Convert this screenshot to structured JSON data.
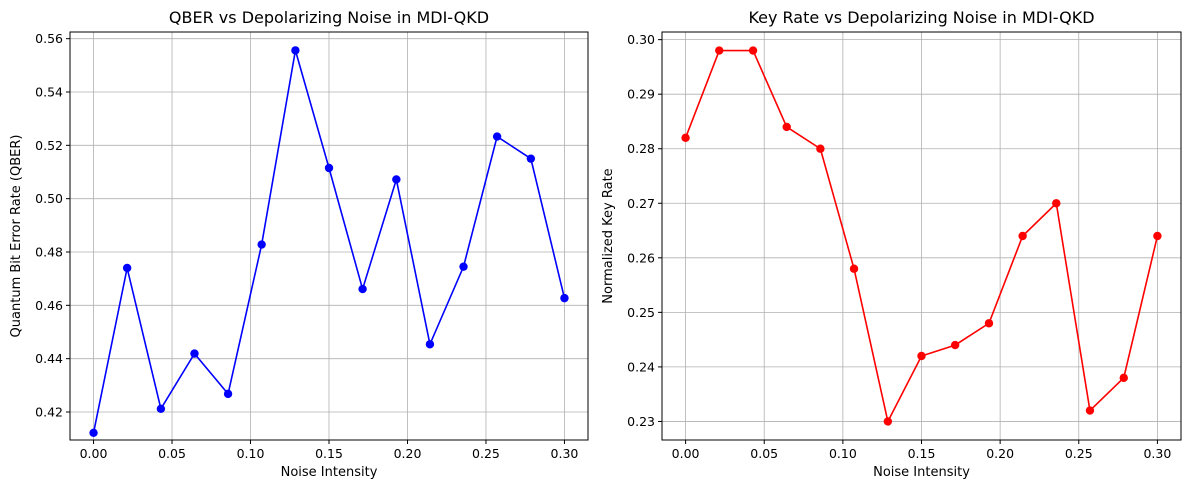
{
  "chart_data": [
    {
      "type": "line",
      "title": "QBER vs Depolarizing Noise in MDI-QKD",
      "xlabel": "Noise Intensity",
      "ylabel": "Quantum Bit Error Rate (QBER)",
      "xlim": [
        -0.015,
        0.315
      ],
      "ylim": [
        0.4095,
        0.5625
      ],
      "xticks": [
        "0.00",
        "0.05",
        "0.10",
        "0.15",
        "0.20",
        "0.25",
        "0.30"
      ],
      "xtick_values": [
        0,
        0.05,
        0.1,
        0.15,
        0.2,
        0.25,
        0.3
      ],
      "yticks": [
        "0.42",
        "0.44",
        "0.46",
        "0.48",
        "0.50",
        "0.52",
        "0.54",
        "0.56"
      ],
      "ytick_values": [
        0.42,
        0.44,
        0.46,
        0.48,
        0.5,
        0.52,
        0.54,
        0.56
      ],
      "grid": true,
      "color": "#0000ff",
      "x": [
        0.0,
        0.0214,
        0.0429,
        0.0643,
        0.0857,
        0.1071,
        0.1286,
        0.15,
        0.1714,
        0.1929,
        0.2143,
        0.2357,
        0.2571,
        0.2786,
        0.3
      ],
      "y": [
        0.4122,
        0.474,
        0.4212,
        0.4419,
        0.4268,
        0.4828,
        0.5556,
        0.5115,
        0.4661,
        0.5072,
        0.4454,
        0.4745,
        0.5233,
        0.515,
        0.4627
      ]
    },
    {
      "type": "line",
      "title": "Key Rate vs Depolarizing Noise in MDI-QKD",
      "xlabel": "Noise Intensity",
      "ylabel": "Normalized Key Rate",
      "xlim": [
        -0.015,
        0.315
      ],
      "ylim": [
        0.2266,
        0.3014
      ],
      "xticks": [
        "0.00",
        "0.05",
        "0.10",
        "0.15",
        "0.20",
        "0.25",
        "0.30"
      ],
      "xtick_values": [
        0,
        0.05,
        0.1,
        0.15,
        0.2,
        0.25,
        0.3
      ],
      "yticks": [
        "0.23",
        "0.24",
        "0.25",
        "0.26",
        "0.27",
        "0.28",
        "0.29",
        "0.30"
      ],
      "ytick_values": [
        0.23,
        0.24,
        0.25,
        0.26,
        0.27,
        0.28,
        0.29,
        0.3
      ],
      "grid": true,
      "color": "#ff0000",
      "x": [
        0.0,
        0.0214,
        0.0429,
        0.0643,
        0.0857,
        0.1071,
        0.1286,
        0.15,
        0.1714,
        0.1929,
        0.2143,
        0.2357,
        0.2571,
        0.2786,
        0.3
      ],
      "y": [
        0.282,
        0.298,
        0.298,
        0.284,
        0.28,
        0.258,
        0.23,
        0.242,
        0.244,
        0.248,
        0.264,
        0.27,
        0.232,
        0.238,
        0.264
      ]
    }
  ]
}
